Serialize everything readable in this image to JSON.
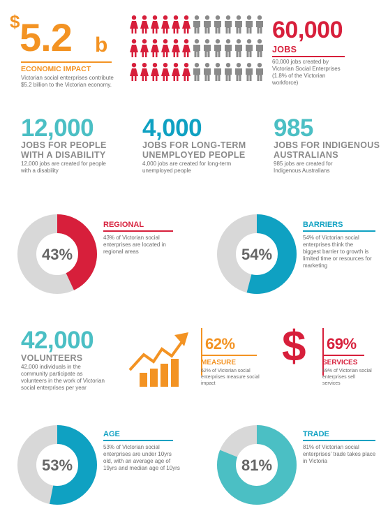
{
  "colors": {
    "orange": "#F39323",
    "red": "#D71F3B",
    "teal": "#4BBFC4",
    "blue": "#0FA1C2",
    "grey": "#D8D8D8",
    "dark_grey": "#8A8A8A",
    "text_grey": "#666666"
  },
  "economic": {
    "dollar": "$",
    "value": "5.2",
    "unit": "b",
    "heading": "ECONOMIC IMPACT",
    "desc": "Victorian social enterprises contribute $5.2 billion to the Victorian economy."
  },
  "jobs": {
    "value": "60,000",
    "heading": "JOBS",
    "desc": "60,000 jobs created by Victorian Social Enterprises (1.8% of the Victorian workforce)",
    "people_icon": "person-icon"
  },
  "disability": {
    "value": "12,000",
    "heading_1": "JOBS FOR PEOPLE",
    "heading_2": "WITH A DISABILITY",
    "desc": "12,000 jobs are created for people with a disability"
  },
  "unemployed": {
    "value": "4,000",
    "heading_1": "JOBS FOR LONG-TERM",
    "heading_2": "UNEMPLOYED PEOPLE",
    "desc": "4,000 jobs are created for long-term unemployed people"
  },
  "indigenous": {
    "value": "985",
    "heading_1": "JOBS FOR INDIGENOUS",
    "heading_2": "AUSTRALIANS",
    "desc": "985 jobs are created for Indigenous Australians"
  },
  "regional": {
    "percent": 43,
    "label": "43%",
    "heading": "REGIONAL",
    "desc": "43% of Victorian social enterprises are located in regional areas"
  },
  "barriers": {
    "percent": 54,
    "label": "54%",
    "heading": "BARRIERS",
    "desc": "54% of Victorian social enterprises think the biggest barrier to growth is limited time or resources for marketing"
  },
  "volunteers": {
    "value": "42,000",
    "heading": "VOLUNTEERS",
    "desc": "42,000 individuals in the community participate as volunteers in the work of Victorian social enterprises per year"
  },
  "measure": {
    "value": "62%",
    "heading": "MEASURE",
    "desc": "62% of Victorian social enterprises measure social impact",
    "icon": "growth-chart-icon"
  },
  "services": {
    "symbol": "$",
    "value": "69%",
    "heading": "SERVICES",
    "desc": "69% of Victorian social enterprises sell services",
    "icon": "dollar-icon"
  },
  "age": {
    "percent": 53,
    "label": "53%",
    "heading": "AGE",
    "desc": "53% of Victorian social enterprises are under 10yrs old, with an average age of 19yrs and median age of 10yrs"
  },
  "trade": {
    "percent": 81,
    "label": "81%",
    "heading": "TRADE",
    "desc": "81% of Victorian social enterprises' trade takes place in Victoria"
  }
}
